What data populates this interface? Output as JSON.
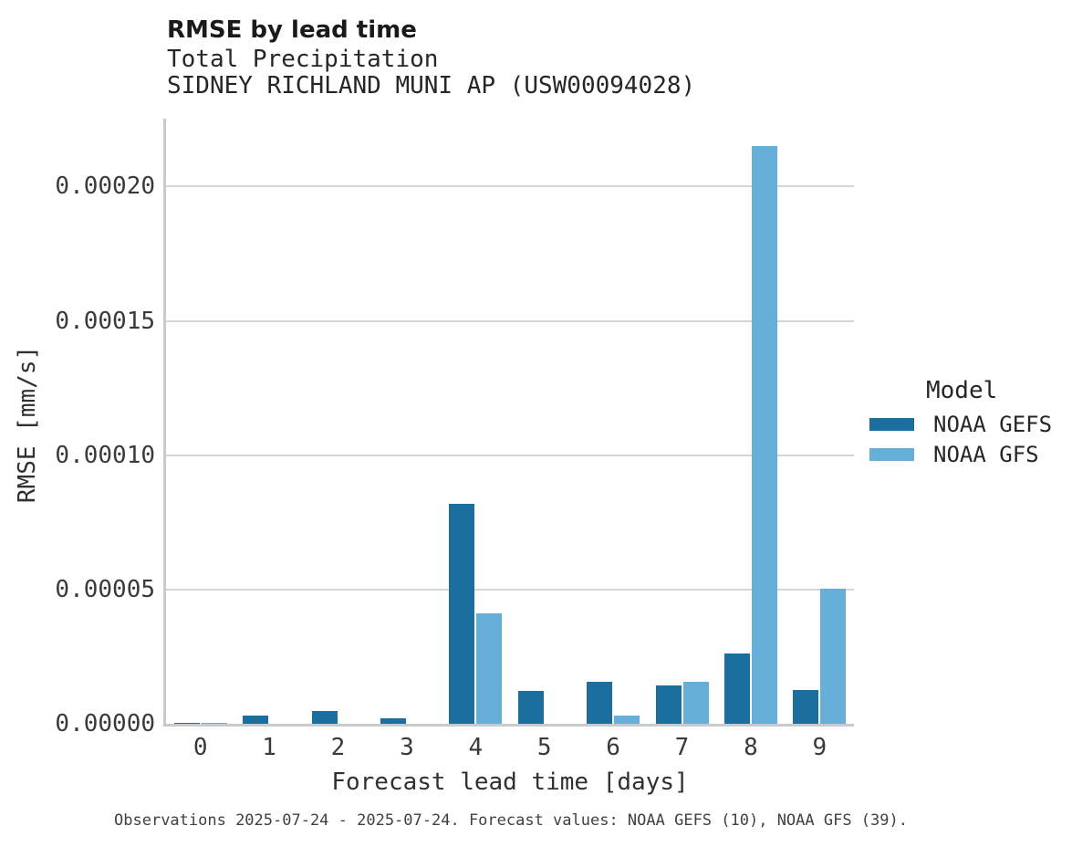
{
  "chart_data": {
    "type": "bar",
    "title": "RMSE by lead time",
    "subtitle_lines": [
      "Total Precipitation",
      "SIDNEY RICHLAND MUNI AP (USW00094028)"
    ],
    "xlabel": "Forecast lead time [days]",
    "ylabel": "RMSE [mm/s]",
    "categories": [
      "0",
      "1",
      "2",
      "3",
      "4",
      "5",
      "6",
      "7",
      "8",
      "9"
    ],
    "series": [
      {
        "name": "NOAA GEFS",
        "color": "#1a6f9e",
        "values": [
          2e-07,
          3.2e-06,
          4.6e-06,
          2.2e-06,
          8.2e-05,
          1.22e-05,
          1.55e-05,
          1.44e-05,
          2.63e-05,
          1.27e-05
        ]
      },
      {
        "name": "NOAA GFS",
        "color": "#65afd8",
        "values": [
          2e-07,
          0,
          0,
          0,
          4.1e-05,
          0,
          2.9e-06,
          1.58e-05,
          0.000215,
          5.03e-05
        ]
      }
    ],
    "ylim": [
      0,
      0.0002253
    ],
    "yticks": [
      0,
      5e-05,
      0.0001,
      0.00015,
      0.0002
    ],
    "ytick_labels": [
      "0.00000",
      "0.00005",
      "0.00010",
      "0.00015",
      "0.00020"
    ],
    "grid": "horizontal",
    "legend": {
      "title": "Model",
      "position": "center-right",
      "entries": [
        "NOAA GEFS",
        "NOAA GFS"
      ]
    },
    "caption": "Observations 2025-07-24 - 2025-07-24. Forecast values: NOAA GEFS (10), NOAA GFS (39)."
  },
  "colors": {
    "background": "#ffffff",
    "gridline": "#d5d5d5",
    "axis_spine": "#c9cacb",
    "title_text": "#1a1a1a",
    "tick_text": "#3a3a3a"
  }
}
